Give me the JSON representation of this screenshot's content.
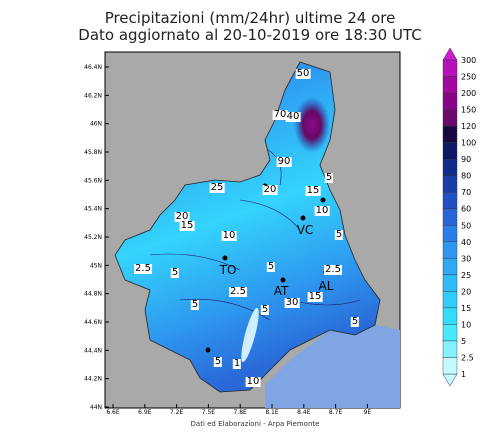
{
  "header": {
    "title": [
      "Precipitazioni (mm/24hr) ultime 24 ore",
      "Dato aggiornato al 20-10-2019 ore 18:30 UTC"
    ]
  },
  "map": {
    "lat_labels": [
      "46.4N",
      "46.2N",
      "46N",
      "45.8N",
      "45.6N",
      "45.4N",
      "45.2N",
      "45N",
      "44.8N",
      "44.6N",
      "44.4N",
      "44.2N",
      "44N"
    ],
    "lon_labels": [
      "6.6E",
      "6.9E",
      "7.2E",
      "7.5E",
      "7.8E",
      "8.1E",
      "8.4E",
      "8.7E",
      "9E"
    ],
    "cities": [
      "TO",
      "AT",
      "AL",
      "VC"
    ],
    "contour_labels": [
      "50",
      "70",
      "40",
      "90",
      "20",
      "15",
      "25",
      "20",
      "15",
      "10",
      "10",
      "5",
      "2.5",
      "5",
      "5",
      "5",
      "2.5",
      "5",
      "30",
      "15",
      "2.5",
      "5",
      "5",
      "1",
      "10",
      "5"
    ]
  },
  "legend": {
    "levels": [
      {
        "label": "300",
        "color": "#d21ad2"
      },
      {
        "label": "250",
        "color": "#b810b8"
      },
      {
        "label": "200",
        "color": "#a0089f"
      },
      {
        "label": "150",
        "color": "#880488"
      },
      {
        "label": "120",
        "color": "#6a0a6a"
      },
      {
        "label": "100",
        "color": "#160a40"
      },
      {
        "label": "90",
        "color": "#0c1a66"
      },
      {
        "label": "80",
        "color": "#122c8a"
      },
      {
        "label": "70",
        "color": "#1a3ca6"
      },
      {
        "label": "60",
        "color": "#2150c2"
      },
      {
        "label": "50",
        "color": "#2866d8"
      },
      {
        "label": "40",
        "color": "#2a7ee8"
      },
      {
        "label": "30",
        "color": "#2e96f0"
      },
      {
        "label": "25",
        "color": "#30a8f5"
      },
      {
        "label": "20",
        "color": "#30baf8"
      },
      {
        "label": "15",
        "color": "#30ccfa"
      },
      {
        "label": "10",
        "color": "#34dcfc"
      },
      {
        "label": "5",
        "color": "#48e8fd"
      },
      {
        "label": "2.5",
        "color": "#86f1fe"
      },
      {
        "label": "1",
        "color": "#c4f9ff"
      }
    ]
  },
  "footer": "Dati ed Elaborazioni - Arpa Piemonte"
}
